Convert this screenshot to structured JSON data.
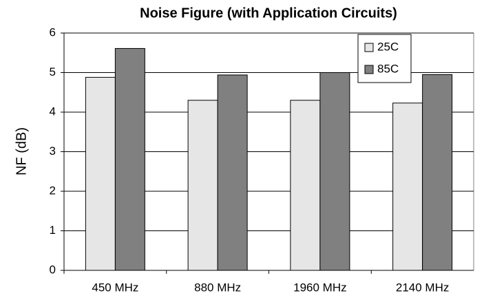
{
  "chart_data": {
    "type": "bar",
    "title": "Noise Figure (with Application Circuits)",
    "y_label": "NF (dB)",
    "categories": [
      "450 MHz",
      "880 MHz",
      "1960 MHz",
      "2140 MHz"
    ],
    "series": [
      {
        "name": "25C",
        "color": "#e6e6e6",
        "values": [
          4.88,
          4.3,
          4.3,
          4.23
        ]
      },
      {
        "name": "85C",
        "color": "#808080",
        "values": [
          5.61,
          4.94,
          5.0,
          4.95
        ]
      }
    ],
    "ylim": [
      0,
      6
    ],
    "yticks": [
      0,
      1,
      2,
      3,
      4,
      5,
      6
    ],
    "grid": true,
    "legend": "top-right"
  }
}
